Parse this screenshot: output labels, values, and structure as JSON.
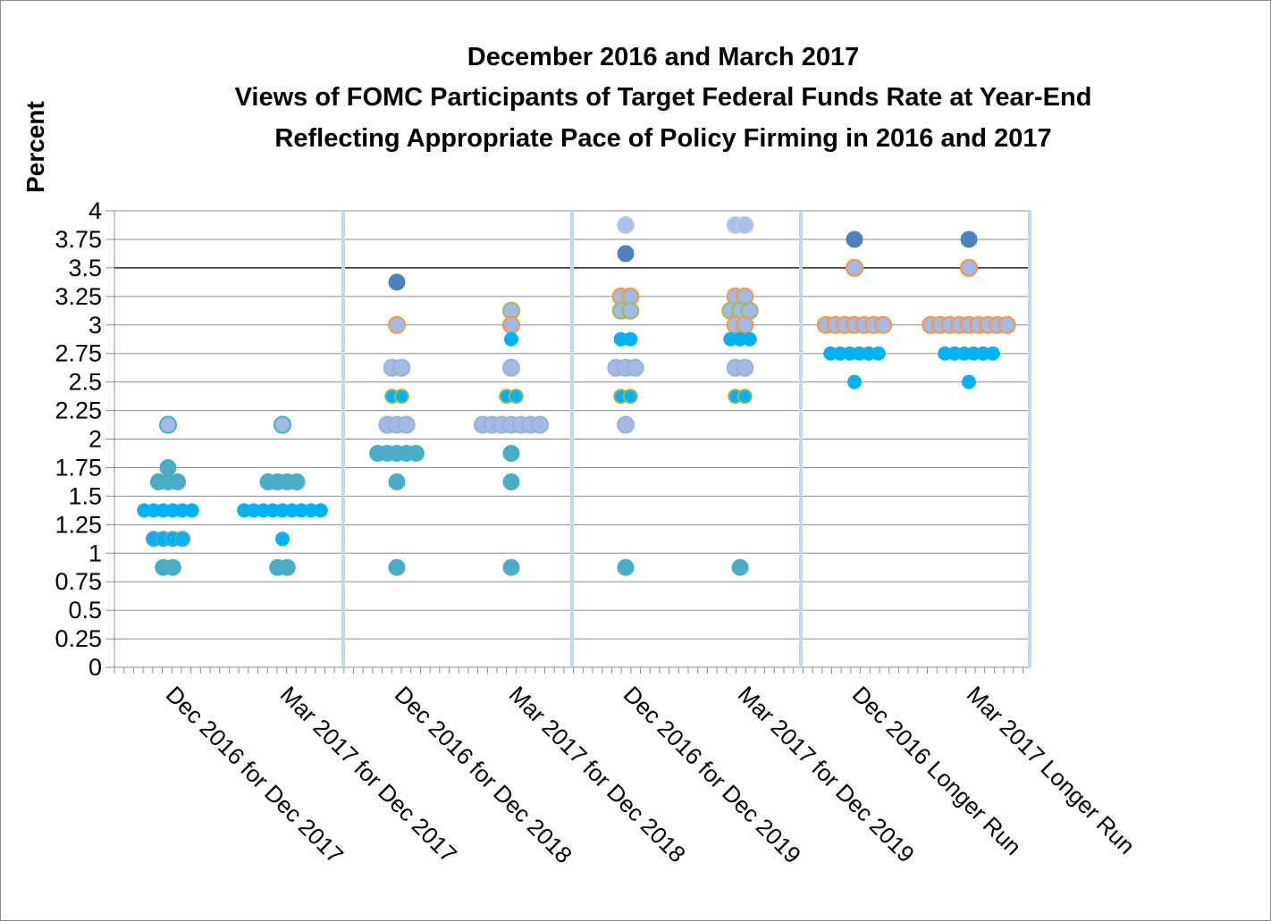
{
  "chart_data": {
    "type": "scatter",
    "title_lines": [
      "December 2016 and March 2017",
      "Views of FOMC Participants of Target Federal Funds Rate at Year-End",
      "Reflecting Appropriate Pace of Policy Firming in 2016 and 2017"
    ],
    "ylabel": "Percent",
    "ylim": [
      0,
      4
    ],
    "yticks": [
      "0",
      "0.25",
      "0.5",
      "0.75",
      "1",
      "1.25",
      "1.5",
      "1.75",
      "2",
      "2.25",
      "2.5",
      "2.75",
      "3",
      "3.25",
      "3.5",
      "3.75",
      "4"
    ],
    "reference_line": 3.5,
    "grid": true,
    "categories": [
      "Dec 2016 for Dec 2017",
      "Mar 2017 for Dec 2017",
      "Dec 2016 for Dec 2018",
      "Mar 2017 for Dec 2018",
      "Dec 2016 for Dec 2019",
      "Mar 2017 for Dec 2019",
      "Dec 2016 Longer Run",
      "Mar 2017 Longer Run"
    ],
    "colors": {
      "teal": "#4bacc6",
      "cyan": "#00b0f0",
      "lavender": "#95b3d7",
      "lavender_fill": "#a4b9e3",
      "dark_blue": "#4f81bd",
      "orange_ring": "#f79646",
      "green_ring": "#9bbb59",
      "separator": "#b7dde8"
    },
    "dot_plot": [
      {
        "category": "Dec 2016 for Dec 2017",
        "dots": [
          {
            "value": 2.125,
            "count": 1,
            "style": "teal_lavender"
          },
          {
            "value": 1.75,
            "count": 1,
            "style": "teal"
          },
          {
            "value": 1.625,
            "count": 3,
            "style": "teal"
          },
          {
            "value": 1.375,
            "count": 6,
            "style": "cyan"
          },
          {
            "value": 1.125,
            "count": 4,
            "style": "teal_cyan"
          },
          {
            "value": 0.875,
            "count": 2,
            "style": "teal"
          }
        ]
      },
      {
        "category": "Mar 2017 for Dec 2017",
        "dots": [
          {
            "value": 2.125,
            "count": 1,
            "style": "teal_lavender"
          },
          {
            "value": 1.625,
            "count": 4,
            "style": "teal"
          },
          {
            "value": 1.375,
            "count": 9,
            "style": "cyan"
          },
          {
            "value": 1.125,
            "count": 1,
            "style": "cyan"
          },
          {
            "value": 0.875,
            "count": 2,
            "style": "teal"
          }
        ]
      },
      {
        "category": "Dec 2016 for Dec 2018",
        "dots": [
          {
            "value": 3.375,
            "count": 1,
            "style": "dark_blue"
          },
          {
            "value": 3.0,
            "count": 1,
            "style": "lavender_orange"
          },
          {
            "value": 2.625,
            "count": 2,
            "style": "lavender"
          },
          {
            "value": 2.375,
            "count": 2,
            "style": "cyan_green"
          },
          {
            "value": 2.125,
            "count": 3,
            "style": "lavender"
          },
          {
            "value": 1.875,
            "count": 5,
            "style": "teal"
          },
          {
            "value": 1.625,
            "count": 1,
            "style": "teal"
          },
          {
            "value": 0.875,
            "count": 1,
            "style": "teal"
          }
        ]
      },
      {
        "category": "Mar 2017 for Dec 2018",
        "dots": [
          {
            "value": 3.125,
            "count": 1,
            "style": "lavender_green"
          },
          {
            "value": 3.0,
            "count": 1,
            "style": "lavender_orange"
          },
          {
            "value": 2.875,
            "count": 1,
            "style": "cyan"
          },
          {
            "value": 2.625,
            "count": 1,
            "style": "lavender"
          },
          {
            "value": 2.375,
            "count": 2,
            "style": "cyan_green"
          },
          {
            "value": 2.125,
            "count": 7,
            "style": "lavender"
          },
          {
            "value": 1.875,
            "count": 1,
            "style": "teal"
          },
          {
            "value": 1.625,
            "count": 1,
            "style": "teal"
          },
          {
            "value": 0.875,
            "count": 1,
            "style": "teal"
          }
        ]
      },
      {
        "category": "Dec 2016 for Dec 2019",
        "dots": [
          {
            "value": 3.875,
            "count": 1,
            "style": "lavender_light"
          },
          {
            "value": 3.625,
            "count": 1,
            "style": "dark_blue"
          },
          {
            "value": 3.25,
            "count": 2,
            "style": "lavender_orange"
          },
          {
            "value": 3.125,
            "count": 2,
            "style": "lavender_green"
          },
          {
            "value": 2.875,
            "count": 2,
            "style": "cyan"
          },
          {
            "value": 2.625,
            "count": 3,
            "style": "lavender"
          },
          {
            "value": 2.375,
            "count": 2,
            "style": "cyan_green"
          },
          {
            "value": 2.125,
            "count": 1,
            "style": "lavender"
          },
          {
            "value": 0.875,
            "count": 1,
            "style": "teal"
          }
        ]
      },
      {
        "category": "Mar 2017 for Dec 2019",
        "dots": [
          {
            "value": 3.875,
            "count": 2,
            "style": "lavender_light"
          },
          {
            "value": 3.25,
            "count": 2,
            "style": "lavender_orange"
          },
          {
            "value": 3.125,
            "count": 3,
            "style": "lavender_green"
          },
          {
            "value": 3.0,
            "count": 2,
            "style": "lavender_orange"
          },
          {
            "value": 2.875,
            "count": 3,
            "style": "cyan"
          },
          {
            "value": 2.625,
            "count": 2,
            "style": "lavender"
          },
          {
            "value": 2.375,
            "count": 2,
            "style": "cyan_green"
          },
          {
            "value": 0.875,
            "count": 1,
            "style": "teal"
          }
        ]
      },
      {
        "category": "Dec 2016 Longer Run",
        "dots": [
          {
            "value": 3.75,
            "count": 1,
            "style": "dark_blue"
          },
          {
            "value": 3.5,
            "count": 1,
            "style": "lavender_orange"
          },
          {
            "value": 3.0,
            "count": 7,
            "style": "lavender_orange"
          },
          {
            "value": 2.75,
            "count": 6,
            "style": "cyan"
          },
          {
            "value": 2.5,
            "count": 1,
            "style": "cyan"
          }
        ]
      },
      {
        "category": "Mar 2017 Longer Run",
        "dots": [
          {
            "value": 3.75,
            "count": 1,
            "style": "dark_blue"
          },
          {
            "value": 3.5,
            "count": 1,
            "style": "lavender_orange"
          },
          {
            "value": 3.0,
            "count": 9,
            "style": "lavender_orange"
          },
          {
            "value": 2.75,
            "count": 6,
            "style": "cyan"
          },
          {
            "value": 2.5,
            "count": 1,
            "style": "cyan"
          }
        ]
      }
    ]
  }
}
